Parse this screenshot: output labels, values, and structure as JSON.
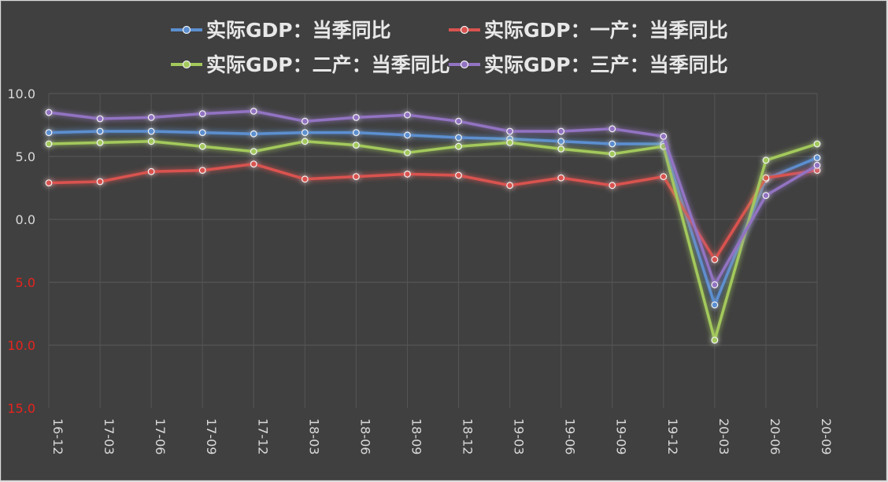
{
  "chart_data": {
    "type": "line",
    "categories": [
      "16-12",
      "17-03",
      "17-06",
      "17-09",
      "17-12",
      "18-03",
      "18-06",
      "18-09",
      "18-12",
      "19-03",
      "19-06",
      "19-09",
      "19-12",
      "20-03",
      "20-06",
      "20-09"
    ],
    "y_tick_labels": [
      "10.0",
      "5.0",
      "0.0",
      "5.0",
      "10.0",
      "15.0"
    ],
    "y_tick_values": [
      10,
      5,
      0,
      -5,
      -10,
      -15
    ],
    "ylim": [
      -15,
      10
    ],
    "grid": true,
    "legend_position": "top",
    "negative_tick_color": "#e8231e",
    "series": [
      {
        "name": "实际GDP：当季同比",
        "color": "#5b8fd0",
        "values": [
          6.9,
          7.0,
          7.0,
          6.9,
          6.8,
          6.9,
          6.9,
          6.7,
          6.5,
          6.4,
          6.2,
          6.0,
          6.0,
          -6.8,
          3.2,
          4.9
        ]
      },
      {
        "name": "实际GDP：一产：当季同比",
        "color": "#d9534f",
        "values": [
          2.9,
          3.0,
          3.8,
          3.9,
          4.4,
          3.2,
          3.4,
          3.6,
          3.5,
          2.7,
          3.3,
          2.7,
          3.4,
          -3.2,
          3.3,
          3.9
        ]
      },
      {
        "name": "实际GDP：二产：当季同比",
        "color": "#a3c95b",
        "values": [
          6.0,
          6.1,
          6.2,
          5.8,
          5.4,
          6.2,
          5.9,
          5.3,
          5.8,
          6.1,
          5.6,
          5.2,
          5.8,
          -9.6,
          4.7,
          6.0
        ]
      },
      {
        "name": "实际GDP：三产：当季同比",
        "color": "#9273c2",
        "values": [
          8.5,
          8.0,
          8.1,
          8.4,
          8.6,
          7.8,
          8.1,
          8.3,
          7.8,
          7.0,
          7.0,
          7.2,
          6.6,
          -5.2,
          1.9,
          4.3
        ]
      }
    ]
  }
}
